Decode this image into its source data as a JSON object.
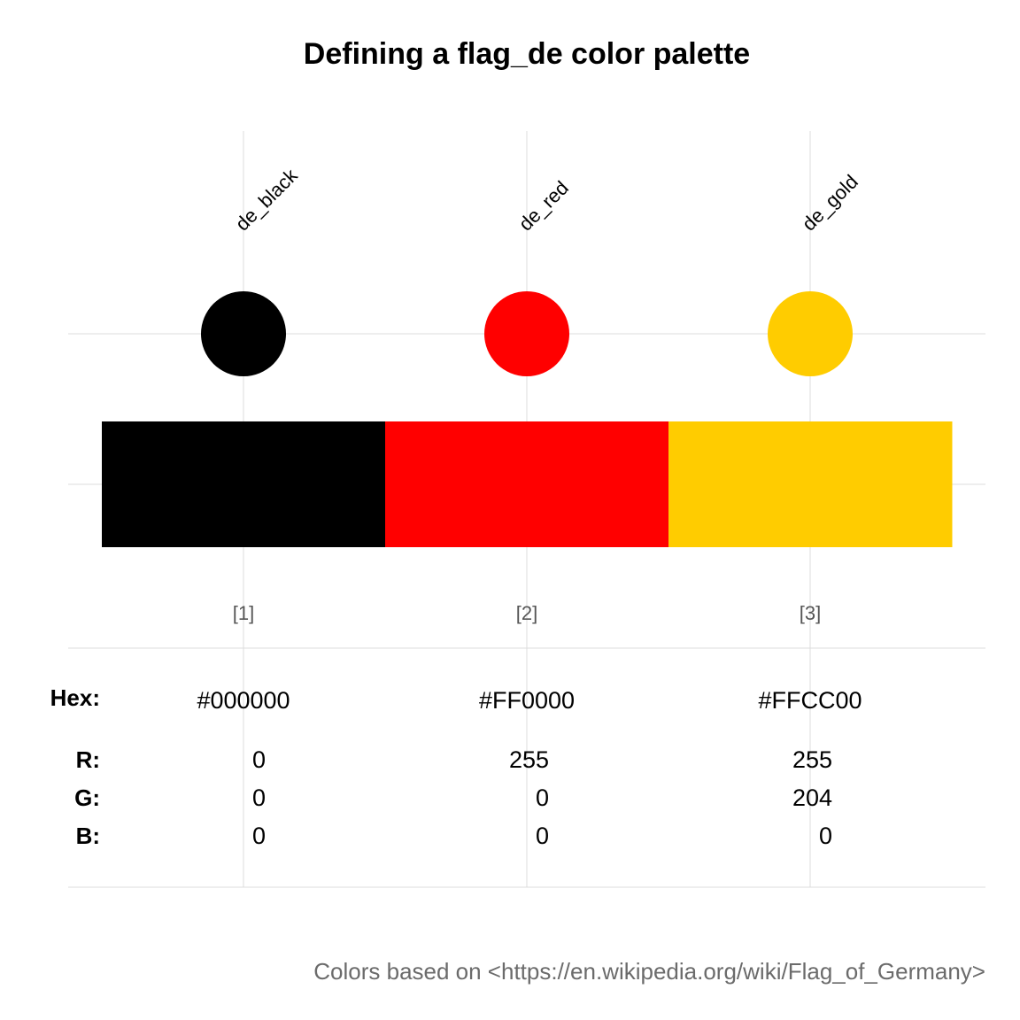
{
  "chart_data": {
    "type": "palette",
    "title": "Defining a flag_de color palette",
    "colors": [
      {
        "name": "de_black",
        "index": "[1]",
        "hex": "#000000",
        "r": "0",
        "g": "0",
        "b": "0"
      },
      {
        "name": "de_red",
        "index": "[2]",
        "hex": "#FF0000",
        "r": "255",
        "g": "0",
        "b": "0"
      },
      {
        "name": "de_gold",
        "index": "[3]",
        "hex": "#FFCC00",
        "r": "255",
        "g": "204",
        "b": "0"
      }
    ],
    "row_labels": {
      "hex": "Hex:",
      "r": "R:",
      "g": "G:",
      "b": "B:"
    },
    "caption": "Colors based on <https://en.wikipedia.org/wiki/Flag_of_Germany>",
    "grid": true
  }
}
